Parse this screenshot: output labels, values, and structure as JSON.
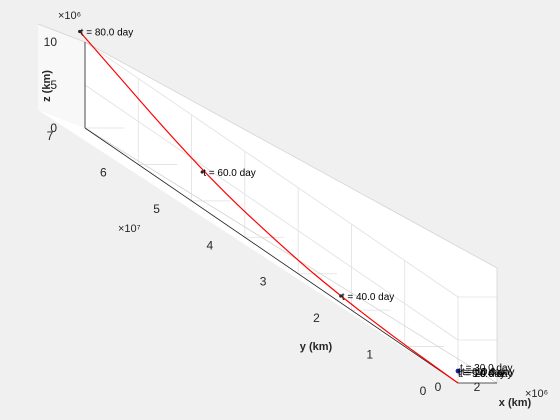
{
  "chart_data": {
    "type": "line",
    "title": "",
    "xlabel": "x (km)",
    "ylabel": "y (km)",
    "zlabel": "z (km)",
    "x_exponent": "×10⁶",
    "y_exponent": "×10⁷",
    "z_exponent": "×10⁶",
    "xlim": [
      0,
      2
    ],
    "ylim": [
      0,
      7
    ],
    "zlim": [
      0,
      10
    ],
    "x_ticks": [
      "0",
      "2"
    ],
    "y_ticks": [
      "0",
      "1",
      "2",
      "3",
      "4",
      "5",
      "6",
      "7"
    ],
    "z_ticks": [
      "0",
      "5",
      "10"
    ],
    "grid": true,
    "line_color": "#ff0000",
    "series": [
      {
        "x": [
          0,
          0,
          0,
          0,
          0,
          0,
          0,
          0,
          0
        ],
        "y": [
          0,
          0.25,
          0.6,
          1.0,
          1.5,
          2.2,
          3.1,
          4.8,
          7.1
        ],
        "z": [
          0,
          0.05,
          0.12,
          0.22,
          0.4,
          0.8,
          1.6,
          4.2,
          10.8
        ]
      }
    ],
    "annotations": [
      {
        "text": "t = 80.0 day",
        "x": 0,
        "y": 7.1,
        "z": 10.8
      },
      {
        "text": "t = 60.0 day",
        "x": 0,
        "y": 4.8,
        "z": 4.2
      },
      {
        "text": "t = 40.0 day",
        "x": 0,
        "y": 2.2,
        "z": 0.8
      }
    ],
    "cluster_labels": [
      "t = 0.0 day",
      "t = 20.0 day",
      "t = 10.0 day",
      "t = 5.0 day",
      "t = 30.0 day"
    ]
  }
}
